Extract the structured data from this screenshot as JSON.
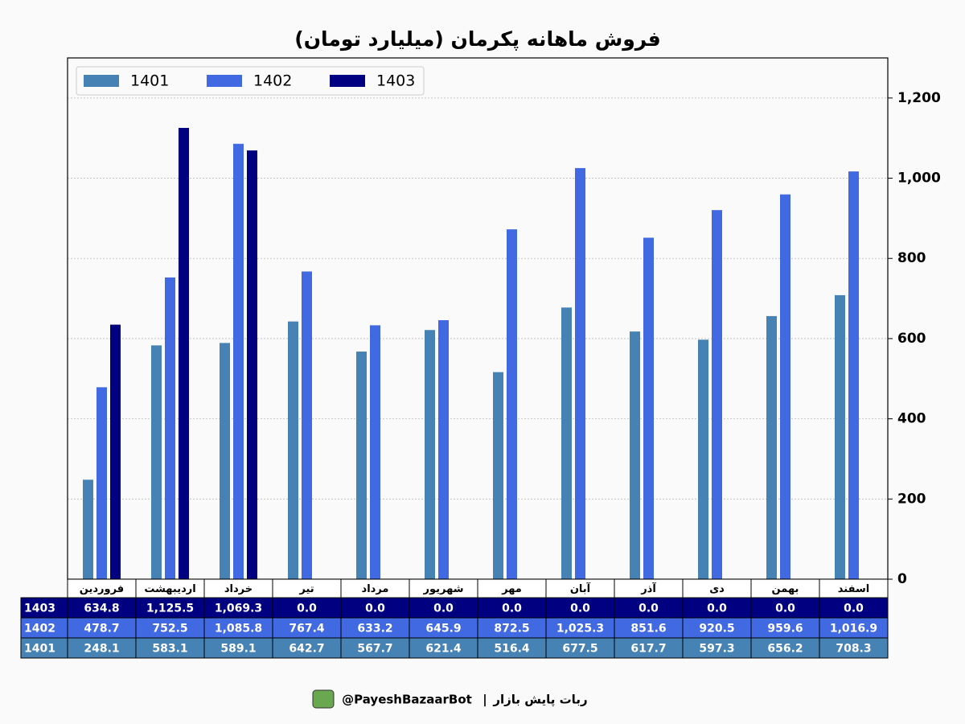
{
  "chart_data": {
    "type": "bar",
    "title": "فروش ماهانه پکرمان (میلیارد تومان)",
    "categories": [
      "فروردین",
      "اردیبهشت",
      "خرداد",
      "تیر",
      "مرداد",
      "شهریور",
      "مهر",
      "آبان",
      "آذر",
      "دی",
      "بهمن",
      "اسفند"
    ],
    "series": [
      {
        "name": "1401",
        "color": "#4682b4",
        "values": [
          248.1,
          583.1,
          589.1,
          642.7,
          567.7,
          621.4,
          516.4,
          677.5,
          617.7,
          597.3,
          656.2,
          708.3
        ],
        "value_labels": [
          "248.1",
          "583.1",
          "589.1",
          "642.7",
          "567.7",
          "621.4",
          "516.4",
          "677.5",
          "617.7",
          "597.3",
          "656.2",
          "708.3"
        ]
      },
      {
        "name": "1402",
        "color": "#4169e1",
        "values": [
          478.7,
          752.5,
          1085.8,
          767.4,
          633.2,
          645.9,
          872.5,
          1025.3,
          851.6,
          920.5,
          959.6,
          1016.9
        ],
        "value_labels": [
          "478.7",
          "752.5",
          "1,085.8",
          "767.4",
          "633.2",
          "645.9",
          "872.5",
          "1,025.3",
          "851.6",
          "920.5",
          "959.6",
          "1,016.9"
        ]
      },
      {
        "name": "1403",
        "color": "#000080",
        "values": [
          634.8,
          1125.5,
          1069.3,
          0,
          0,
          0,
          0,
          0,
          0,
          0,
          0,
          0
        ],
        "value_labels": [
          "634.8",
          "1,125.5",
          "1,069.3",
          "0.0",
          "0.0",
          "0.0",
          "0.0",
          "0.0",
          "0.0",
          "0.0",
          "0.0",
          "0.0"
        ]
      }
    ],
    "ylim": [
      0,
      1300
    ],
    "yticks": [
      0,
      200,
      400,
      600,
      800,
      {
        "value": 1000,
        "label": "1,000"
      },
      {
        "value": 1200,
        "label": "1,200"
      }
    ],
    "grid": true,
    "legend": "upper left"
  },
  "footer": {
    "text": "ربات پایش بازار",
    "separator": "|",
    "handle": "@PayeshBazaarBot"
  }
}
